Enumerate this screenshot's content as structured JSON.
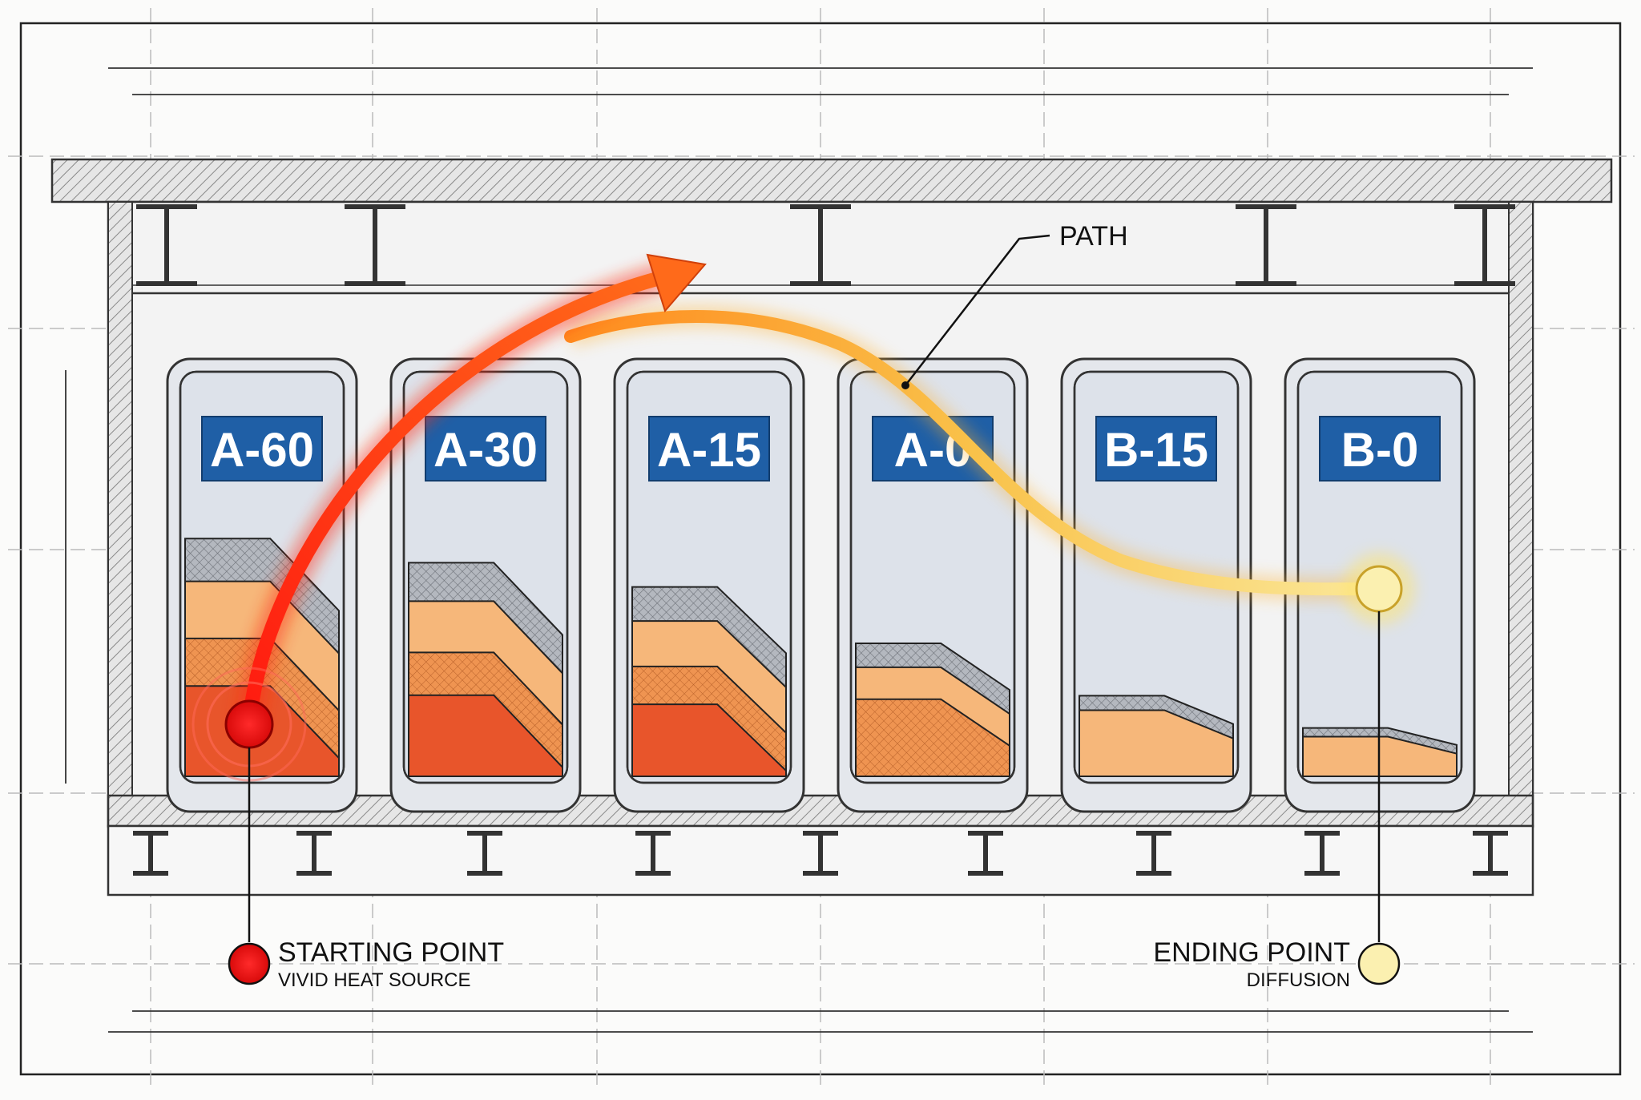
{
  "cabinets": [
    {
      "label": "A-60",
      "fill_level": 0.59
    },
    {
      "label": "A-30",
      "fill_level": 0.53
    },
    {
      "label": "A-15",
      "fill_level": 0.47
    },
    {
      "label": "A-0",
      "fill_level": 0.33
    },
    {
      "label": "B-15",
      "fill_level": 0.2
    },
    {
      "label": "B-0",
      "fill_level": 0.12
    }
  ],
  "path_label": "PATH",
  "legend": {
    "start": {
      "title": "STARTING POINT",
      "subtitle": "VIVID HEAT SOURCE"
    },
    "end": {
      "title": "ENDING POINT",
      "subtitle": "DIFFUSION"
    }
  },
  "colors": {
    "label_bg": "#1f5fa6",
    "heat_hot": "#e8552b",
    "heat_mid": "#f19a55",
    "heat_light": "#f6b77a",
    "insulation": "#b9bcc2",
    "path_hot": "#ff2a10",
    "path_cool": "#f8e27a",
    "start_dot": "#e60f0f",
    "end_dot": "#fbf0b0",
    "panel": "#dde2ea"
  }
}
